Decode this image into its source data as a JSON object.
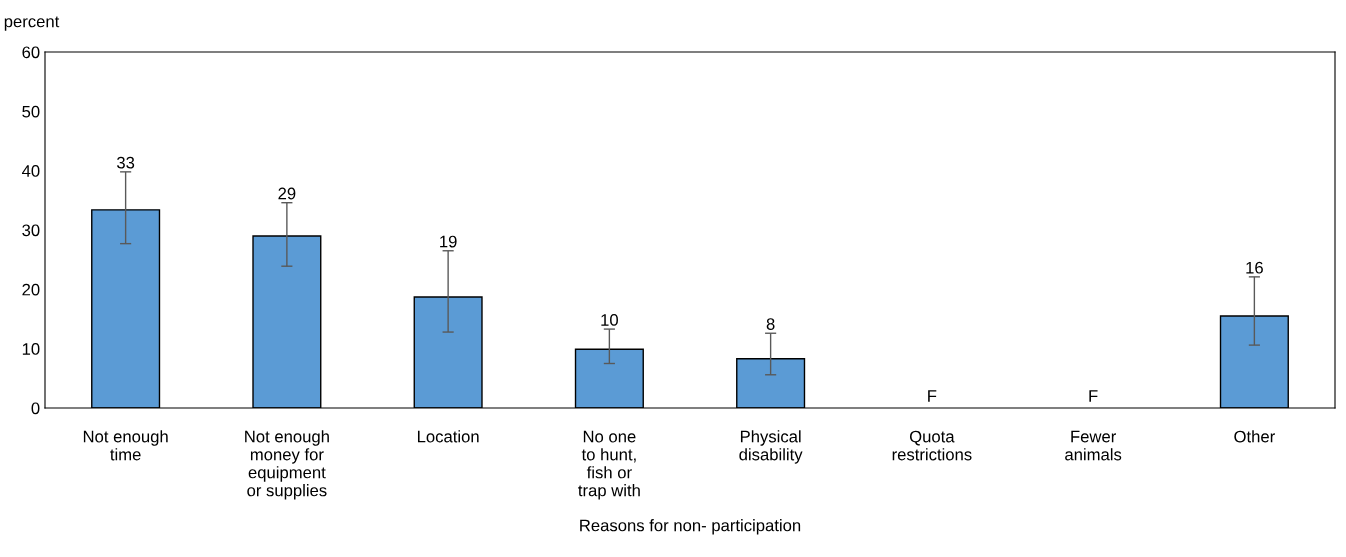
{
  "chart_data": {
    "type": "bar",
    "xlabel": "Reasons for non- participation",
    "ylabel": "percent",
    "categories": [
      "Not enough\ntime",
      "Not enough\nmoney for\nequipment\nor supplies",
      "Location",
      "No one\nto hunt,\nfish or\ntrap with",
      "Physical\ndisability",
      "Quota\nrestrictions",
      "Fewer\nanimals",
      "Other"
    ],
    "values": [
      33.4,
      29.0,
      18.7,
      9.9,
      8.3,
      null,
      null,
      15.5
    ],
    "errors": [
      [
        27.7,
        39.8
      ],
      [
        23.9,
        34.6
      ],
      [
        12.8,
        26.5
      ],
      [
        7.5,
        13.3
      ],
      [
        5.6,
        12.6
      ],
      null,
      null,
      [
        10.6,
        22.1
      ]
    ],
    "value_labels": [
      "33",
      "29",
      "19",
      "10",
      "8",
      "F",
      "F",
      "16"
    ],
    "color": "#5b9bd5",
    "ylim": [
      0,
      60
    ],
    "yticks": [
      0,
      10,
      20,
      30,
      40,
      50,
      60
    ],
    "grid": false,
    "legend": false
  }
}
